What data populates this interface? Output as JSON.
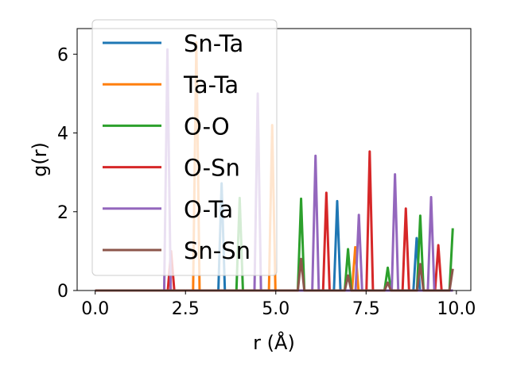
{
  "chart_data": {
    "type": "line",
    "xlabel": "r (Å)",
    "ylabel": "g(r)",
    "xlim": [
      -0.5,
      10.4
    ],
    "ylim": [
      0,
      6.65
    ],
    "xticks": [
      0.0,
      2.5,
      5.0,
      7.5,
      10.0
    ],
    "xtick_labels": [
      "0.0",
      "2.5",
      "5.0",
      "7.5",
      "10.0"
    ],
    "yticks": [
      0,
      2,
      4,
      6
    ],
    "ytick_labels": [
      "0",
      "2",
      "4",
      "6"
    ],
    "grid": false,
    "legend_position": "top-left",
    "x_range": [
      0,
      9.9
    ],
    "peak_half_width": 0.09,
    "series": [
      {
        "name": "Sn-Ta",
        "color": "#1f77b4",
        "peaks": [
          [
            3.5,
            2.72
          ],
          [
            6.7,
            2.27
          ],
          [
            8.9,
            1.33
          ]
        ]
      },
      {
        "name": "Ta-Ta",
        "color": "#ff7f0e",
        "peaks": [
          [
            2.8,
            6.3
          ],
          [
            4.9,
            4.2
          ],
          [
            7.2,
            1.1
          ]
        ]
      },
      {
        "name": "O-O",
        "color": "#2ca02c",
        "peaks": [
          [
            4.0,
            2.35
          ],
          [
            5.7,
            2.33
          ],
          [
            7.0,
            1.05
          ],
          [
            8.1,
            0.58
          ],
          [
            9.0,
            1.9
          ],
          [
            9.9,
            1.58
          ]
        ]
      },
      {
        "name": "O-Sn",
        "color": "#d62728",
        "peaks": [
          [
            2.1,
            1.0
          ],
          [
            6.4,
            2.48
          ],
          [
            7.6,
            3.53
          ],
          [
            8.6,
            2.08
          ],
          [
            9.5,
            1.15
          ]
        ]
      },
      {
        "name": "O-Ta",
        "color": "#9467bd",
        "peaks": [
          [
            2.0,
            6.12
          ],
          [
            4.5,
            5.0
          ],
          [
            6.1,
            3.42
          ],
          [
            7.3,
            1.92
          ],
          [
            8.3,
            2.95
          ],
          [
            9.3,
            2.37
          ]
        ]
      },
      {
        "name": "Sn-Sn",
        "color": "#8c564b",
        "peaks": [
          [
            5.7,
            0.8
          ],
          [
            7.0,
            0.38
          ],
          [
            8.1,
            0.2
          ],
          [
            9.0,
            0.67
          ],
          [
            9.9,
            0.55
          ]
        ]
      }
    ]
  }
}
